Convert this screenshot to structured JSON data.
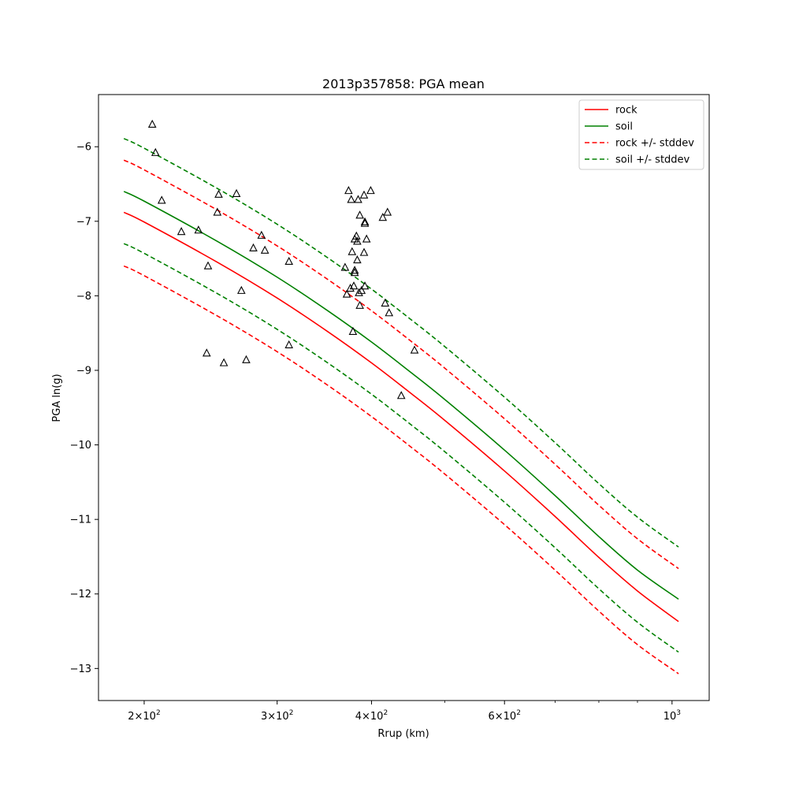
{
  "chart_data": {
    "type": "line",
    "title": "2013p357858: PGA mean",
    "xlabel": "Rrup (km)",
    "ylabel": "PGA ln(g)",
    "xscale": "log",
    "xlim": [
      174,
      1120
    ],
    "ylim": [
      -13.43,
      -5.3
    ],
    "grid": false,
    "legend_position": "top-right",
    "x_ticks": [
      {
        "value": 200,
        "base": "2",
        "mult": "×10",
        "exp": "2"
      },
      {
        "value": 300,
        "base": "3",
        "mult": "×10",
        "exp": "2"
      },
      {
        "value": 400,
        "base": "4",
        "mult": "×10",
        "exp": "2"
      },
      {
        "value": 600,
        "base": "6",
        "mult": "×10",
        "exp": "2"
      },
      {
        "value": 1000,
        "base": "10",
        "mult": "",
        "exp": "3"
      }
    ],
    "x_minor_ticks": [
      500,
      700,
      800,
      900
    ],
    "y_ticks": [
      {
        "value": -6,
        "label": "−6"
      },
      {
        "value": -7,
        "label": "−7"
      },
      {
        "value": -8,
        "label": "−8"
      },
      {
        "value": -9,
        "label": "−9"
      },
      {
        "value": -10,
        "label": "−10"
      },
      {
        "value": -11,
        "label": "−11"
      },
      {
        "value": -12,
        "label": "−12"
      },
      {
        "value": -13,
        "label": "−13"
      }
    ],
    "x": [
      188,
      200,
      250,
      300,
      350,
      400,
      450,
      500,
      600,
      700,
      800,
      900,
      1020
    ],
    "series": [
      {
        "name": "rock",
        "color": "#ff0000",
        "style": "solid",
        "legend": true,
        "values": [
          -6.88,
          -7.01,
          -7.55,
          -8.03,
          -8.48,
          -8.9,
          -9.3,
          -9.67,
          -10.35,
          -10.96,
          -11.51,
          -11.96,
          -12.37
        ]
      },
      {
        "name": "soil",
        "color": "#008000",
        "style": "solid",
        "legend": true,
        "values": [
          -6.6,
          -6.73,
          -7.27,
          -7.75,
          -8.2,
          -8.62,
          -9.02,
          -9.39,
          -10.07,
          -10.68,
          -11.23,
          -11.68,
          -12.07
        ]
      },
      {
        "name": "rock +/- stddev",
        "color": "#ff0000",
        "style": "dashed",
        "legend": true,
        "values": [
          -6.18,
          -6.31,
          -6.85,
          -7.33,
          -7.78,
          -8.2,
          -8.6,
          -8.97,
          -9.65,
          -10.26,
          -10.81,
          -11.26,
          -11.66
        ]
      },
      {
        "name": "",
        "color": "#ff0000",
        "style": "dashed",
        "legend": false,
        "values": [
          -7.6,
          -7.73,
          -8.27,
          -8.75,
          -9.2,
          -9.62,
          -10.02,
          -10.39,
          -11.07,
          -11.68,
          -12.23,
          -12.68,
          -13.07
        ]
      },
      {
        "name": "soil +/- stddev",
        "color": "#008000",
        "style": "dashed",
        "legend": true,
        "values": [
          -5.89,
          -6.02,
          -6.56,
          -7.04,
          -7.49,
          -7.91,
          -8.31,
          -8.68,
          -9.36,
          -9.97,
          -10.52,
          -10.97,
          -11.37
        ]
      },
      {
        "name": "",
        "color": "#008000",
        "style": "dashed",
        "legend": false,
        "values": [
          -7.3,
          -7.43,
          -7.97,
          -8.45,
          -8.9,
          -9.32,
          -9.72,
          -10.09,
          -10.77,
          -11.38,
          -11.93,
          -12.38,
          -12.78
        ]
      }
    ],
    "observations": [
      {
        "x": 205,
        "y": -5.7
      },
      {
        "x": 207,
        "y": -6.08
      },
      {
        "x": 211,
        "y": -6.72
      },
      {
        "x": 224,
        "y": -7.14
      },
      {
        "x": 236,
        "y": -7.12
      },
      {
        "x": 243,
        "y": -7.6
      },
      {
        "x": 242,
        "y": -8.77
      },
      {
        "x": 250,
        "y": -6.88
      },
      {
        "x": 251,
        "y": -6.64
      },
      {
        "x": 255,
        "y": -8.9
      },
      {
        "x": 265,
        "y": -6.63
      },
      {
        "x": 269,
        "y": -7.93
      },
      {
        "x": 273,
        "y": -8.86
      },
      {
        "x": 279,
        "y": -7.36
      },
      {
        "x": 286,
        "y": -7.19
      },
      {
        "x": 289,
        "y": -7.39
      },
      {
        "x": 311,
        "y": -7.54
      },
      {
        "x": 311,
        "y": -8.66
      },
      {
        "x": 369,
        "y": -7.62
      },
      {
        "x": 371,
        "y": -7.98
      },
      {
        "x": 373,
        "y": -6.59
      },
      {
        "x": 375,
        "y": -7.9
      },
      {
        "x": 376,
        "y": -6.71
      },
      {
        "x": 377,
        "y": -7.41
      },
      {
        "x": 378,
        "y": -8.48
      },
      {
        "x": 379,
        "y": -7.87
      },
      {
        "x": 380,
        "y": -7.24
      },
      {
        "x": 380,
        "y": -7.66
      },
      {
        "x": 380,
        "y": -7.69
      },
      {
        "x": 382,
        "y": -7.2
      },
      {
        "x": 383,
        "y": -7.52
      },
      {
        "x": 383,
        "y": -7.27
      },
      {
        "x": 384,
        "y": -6.71
      },
      {
        "x": 385,
        "y": -7.96
      },
      {
        "x": 386,
        "y": -8.13
      },
      {
        "x": 386,
        "y": -6.92
      },
      {
        "x": 388,
        "y": -7.93
      },
      {
        "x": 391,
        "y": -7.42
      },
      {
        "x": 391,
        "y": -6.65
      },
      {
        "x": 392,
        "y": -7.01
      },
      {
        "x": 392,
        "y": -7.03
      },
      {
        "x": 392,
        "y": -7.87
      },
      {
        "x": 394,
        "y": -7.24
      },
      {
        "x": 399,
        "y": -6.59
      },
      {
        "x": 414,
        "y": -6.95
      },
      {
        "x": 417,
        "y": -8.1
      },
      {
        "x": 420,
        "y": -6.88
      },
      {
        "x": 422,
        "y": -8.23
      },
      {
        "x": 438,
        "y": -9.34
      },
      {
        "x": 456,
        "y": -8.73
      }
    ]
  }
}
